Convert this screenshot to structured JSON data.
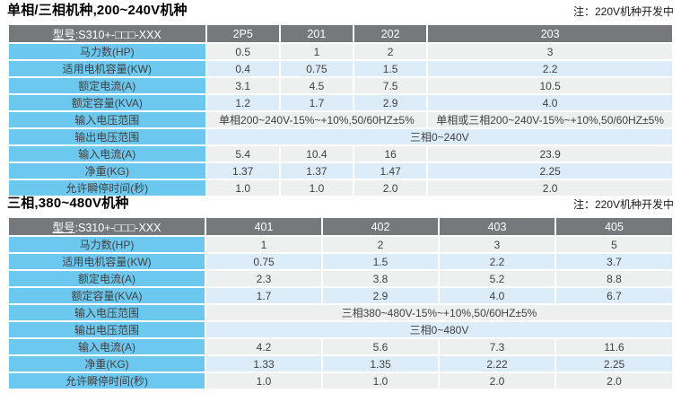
{
  "colors": {
    "header_bg": "#77787b",
    "header_text": "#ffffff",
    "label_bg": "#6cc8ef",
    "label_text": "#3f4043",
    "row_gray": "#eeefef",
    "row_blue": "#dcedf9",
    "value_text": "#414042"
  },
  "tables": [
    {
      "title": "单相/三相机种,200~240V机种",
      "note": "注：220V机种开发中",
      "model": {
        "prefix": "型号",
        "suffix": ":S310+-□□□-XXX"
      },
      "columns": [
        "2P5",
        "201",
        "202",
        "203"
      ],
      "rows": [
        {
          "type": "values",
          "label": "马力数(HP)",
          "values": [
            "0.5",
            "1",
            "2",
            "3"
          ]
        },
        {
          "type": "values",
          "label": "适用电机容量(KW)",
          "values": [
            "0.4",
            "0.75",
            "1.5",
            "2.2"
          ]
        },
        {
          "type": "values",
          "label": "额定电流(A)",
          "values": [
            "3.1",
            "4.5",
            "7.5",
            "10.5"
          ]
        },
        {
          "type": "values",
          "label": "额定容量(KVA)",
          "values": [
            "1.2",
            "1.7",
            "2.9",
            "4.0"
          ]
        },
        {
          "type": "split",
          "label": "输入电压范围",
          "cells": [
            {
              "text": "单相200~240V-15%~+10%,50/60HZ±5%",
              "span": 3
            },
            {
              "text": "单相或三相200~240V-15%~+10%,50/60HZ±5%",
              "span": 1
            }
          ]
        },
        {
          "type": "merged",
          "label": "输出电压范围",
          "text": "三相0~240V"
        },
        {
          "type": "values",
          "label": "输入电流(A)",
          "values": [
            "5.4",
            "10.4",
            "16",
            "23.9"
          ]
        },
        {
          "type": "values",
          "label": "净重(KG)",
          "values": [
            "1.37",
            "1.37",
            "1.47",
            "2.25"
          ]
        },
        {
          "type": "values",
          "label": "允许瞬停时间(秒)",
          "values": [
            "1.0",
            "1.0",
            "2.0",
            "2.0"
          ]
        }
      ]
    },
    {
      "title": "三相,380~480V机种",
      "note": "注：220V机种开发中",
      "model": {
        "prefix": "型号",
        "suffix": ":S310+-□□□-XXX"
      },
      "columns": [
        "401",
        "402",
        "403",
        "405"
      ],
      "rows": [
        {
          "type": "values",
          "label": "马力数(HP)",
          "values": [
            "1",
            "2",
            "3",
            "5"
          ]
        },
        {
          "type": "values",
          "label": "适用电机容量(KW)",
          "values": [
            "0.75",
            "1.5",
            "2.2",
            "3.7"
          ]
        },
        {
          "type": "values",
          "label": "额定电流(A)",
          "values": [
            "2.3",
            "3.8",
            "5.2",
            "8.8"
          ]
        },
        {
          "type": "values",
          "label": "额定容量(KVA)",
          "values": [
            "1.7",
            "2.9",
            "4.0",
            "6.7"
          ]
        },
        {
          "type": "merged",
          "label": "输入电压范围",
          "text": "三相380~480V-15%~+10%,50/60HZ±5%"
        },
        {
          "type": "merged",
          "label": "输出电压范围",
          "text": "三相0~480V"
        },
        {
          "type": "values",
          "label": "输入电流(A)",
          "values": [
            "4.2",
            "5.6",
            "7.3",
            "11.6"
          ]
        },
        {
          "type": "values",
          "label": "净重(KG)",
          "values": [
            "1.33",
            "1.35",
            "2.22",
            "2.25"
          ]
        },
        {
          "type": "values",
          "label": "允许瞬停时间(秒)",
          "values": [
            "1.0",
            "1.0",
            "2.0",
            "2.0"
          ]
        }
      ]
    }
  ]
}
